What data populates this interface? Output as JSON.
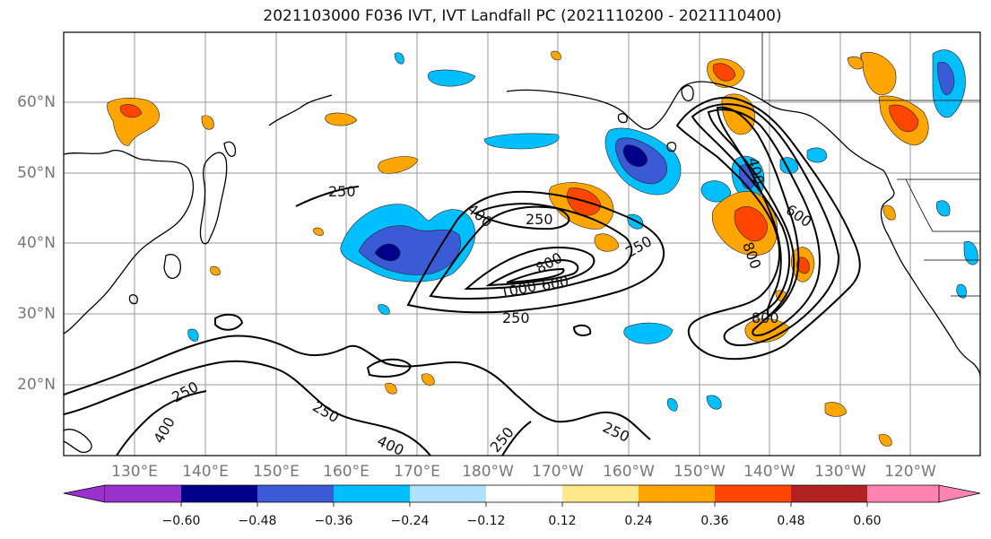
{
  "title": "2021103000 F036 IVT, IVT Landfall PC (2021110200 - 2021110400)",
  "axes": {
    "lat_labels": [
      "60°N",
      "50°N",
      "40°N",
      "30°N",
      "20°N"
    ],
    "lon_labels": [
      "130°E",
      "140°E",
      "150°E",
      "160°E",
      "170°E",
      "180°W",
      "170°W",
      "160°W",
      "150°W",
      "140°W",
      "130°W",
      "120°W"
    ]
  },
  "contour_labels": [
    "250",
    "250",
    "400",
    "250",
    "800",
    "1000",
    "600",
    "250",
    "400",
    "800",
    "600",
    "800",
    "250",
    "400",
    "250",
    "400",
    "250",
    "250"
  ],
  "colorbar": {
    "tick_labels": [
      "−0.60",
      "−0.48",
      "−0.36",
      "−0.24",
      "−0.12",
      "0.12",
      "0.24",
      "0.36",
      "0.48",
      "0.60"
    ],
    "colors": [
      "#9932CC",
      "#00008B",
      "#3A5AD6",
      "#00BFFF",
      "#B0E2FF",
      "#FFFFFF",
      "#FFE98A",
      "#FFA500",
      "#FF4500",
      "#B22222",
      "#FF85B0"
    ]
  }
}
